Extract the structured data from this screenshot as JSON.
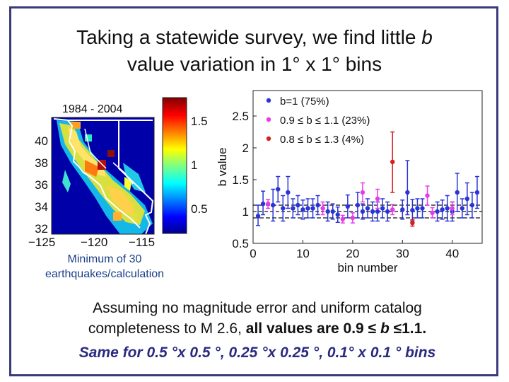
{
  "slide": {
    "title_line1_prefix": "Taking a statewide survey, we find little ",
    "title_line1_b": "b",
    "title_line2": "value variation in  1° x 1° bins",
    "caption_line1": "Assuming no magnitude error and uniform catalog",
    "caption_line2_plain": "completeness to M 2.6, ",
    "caption_line2_bold": "all values are 0.9 ≤ ",
    "caption_line2_b": "b",
    "caption_line2_end": " ≤1.1.",
    "caption_line3": "Same for 0.5 °x 0.5 °, 0.25 °x 0.25 °, 0.1° x 0.1 ° bins"
  },
  "map": {
    "period_label": "1984 - 2004",
    "y_ticks": [
      "40",
      "38",
      "36",
      "34",
      "32"
    ],
    "x_ticks": [
      "−125",
      "−120",
      "−115"
    ],
    "colorbar_ticks": [
      "1.5",
      "1",
      "0.5"
    ],
    "min_label_line1": "Minimum of 30",
    "min_label_line2": "earthquakes/calculation"
  },
  "chart_data": {
    "type": "scatter",
    "title": "",
    "xlabel": "bin number",
    "ylabel": "b value",
    "xlim": [
      0,
      46
    ],
    "ylim": [
      0.5,
      2.9
    ],
    "x_ticks": [
      0,
      10,
      20,
      30,
      40
    ],
    "y_ticks": [
      0.5,
      1,
      1.5,
      2,
      2.5
    ],
    "y_tick_labels": [
      "0.5",
      "1",
      "1.5",
      "2",
      "2.5"
    ],
    "reference_lines": [
      1.1,
      1.0,
      0.9
    ],
    "legend": [
      {
        "label": "b=1 (75%)",
        "color": "#2a35d8"
      },
      {
        "label": "0.9 ≤ b ≤ 1.1 (23%)",
        "color": "#e83ae8"
      },
      {
        "label": "0.8 ≤ b ≤ 1.3 (4%)",
        "color": "#d42020"
      }
    ],
    "series": [
      {
        "name": "b=1 (75%)",
        "color": "#2a35d8",
        "points": [
          {
            "x": 1,
            "y": 0.93,
            "lo": 0.78,
            "hi": 1.1
          },
          {
            "x": 2,
            "y": 1.12,
            "lo": 0.95,
            "hi": 1.32
          },
          {
            "x": 4,
            "y": 1.1,
            "lo": 0.85,
            "hi": 1.35
          },
          {
            "x": 5,
            "y": 1.35,
            "lo": 1.15,
            "hi": 1.55
          },
          {
            "x": 6,
            "y": 1.05,
            "lo": 0.85,
            "hi": 1.25
          },
          {
            "x": 7,
            "y": 1.3,
            "lo": 1.05,
            "hi": 1.55
          },
          {
            "x": 8,
            "y": 1.05,
            "lo": 0.9,
            "hi": 1.2
          },
          {
            "x": 9,
            "y": 1.1,
            "lo": 0.95,
            "hi": 1.25
          },
          {
            "x": 10,
            "y": 1.03,
            "lo": 0.88,
            "hi": 1.18
          },
          {
            "x": 11,
            "y": 1.05,
            "lo": 0.9,
            "hi": 1.2
          },
          {
            "x": 12,
            "y": 1.05,
            "lo": 0.9,
            "hi": 1.2
          },
          {
            "x": 13,
            "y": 1.1,
            "lo": 0.95,
            "hi": 1.25
          },
          {
            "x": 15,
            "y": 1.0,
            "lo": 0.85,
            "hi": 1.15
          },
          {
            "x": 16,
            "y": 1.0,
            "lo": 0.88,
            "hi": 1.12
          },
          {
            "x": 17,
            "y": 0.95,
            "lo": 0.83,
            "hi": 1.07
          },
          {
            "x": 19,
            "y": 1.08,
            "lo": 0.9,
            "hi": 1.26
          },
          {
            "x": 21,
            "y": 1.1,
            "lo": 0.9,
            "hi": 1.3
          },
          {
            "x": 22,
            "y": 1.0,
            "lo": 0.88,
            "hi": 1.12
          },
          {
            "x": 23,
            "y": 1.05,
            "lo": 0.9,
            "hi": 1.2
          },
          {
            "x": 24,
            "y": 1.0,
            "lo": 0.85,
            "hi": 1.15
          },
          {
            "x": 25,
            "y": 1.0,
            "lo": 0.85,
            "hi": 1.15
          },
          {
            "x": 26,
            "y": 1.05,
            "lo": 0.9,
            "hi": 1.2
          },
          {
            "x": 27,
            "y": 1.0,
            "lo": 0.85,
            "hi": 1.15
          },
          {
            "x": 30,
            "y": 1.03,
            "lo": 0.88,
            "hi": 1.18
          },
          {
            "x": 31,
            "y": 1.3,
            "lo": 0.95,
            "hi": 1.8
          },
          {
            "x": 32,
            "y": 1.02,
            "lo": 0.85,
            "hi": 1.19
          },
          {
            "x": 33,
            "y": 1.05,
            "lo": 0.9,
            "hi": 1.2
          },
          {
            "x": 34,
            "y": 1.05,
            "lo": 0.9,
            "hi": 1.2
          },
          {
            "x": 37,
            "y": 1.0,
            "lo": 0.85,
            "hi": 1.15
          },
          {
            "x": 38,
            "y": 1.03,
            "lo": 0.88,
            "hi": 1.18
          },
          {
            "x": 39,
            "y": 1.05,
            "lo": 0.85,
            "hi": 1.25
          },
          {
            "x": 40,
            "y": 1.0,
            "lo": 0.85,
            "hi": 1.15
          },
          {
            "x": 41,
            "y": 1.3,
            "lo": 1.0,
            "hi": 1.6
          },
          {
            "x": 42,
            "y": 1.05,
            "lo": 0.9,
            "hi": 1.2
          },
          {
            "x": 43,
            "y": 1.2,
            "lo": 0.95,
            "hi": 1.45
          },
          {
            "x": 44,
            "y": 1.1,
            "lo": 0.9,
            "hi": 1.3
          },
          {
            "x": 45,
            "y": 1.3,
            "lo": 1.05,
            "hi": 1.55
          }
        ]
      },
      {
        "name": "0.9 ≤ b ≤ 1.1 (23%)",
        "color": "#e83ae8",
        "points": [
          {
            "x": 3,
            "y": 1.12,
            "lo": 1.05,
            "hi": 1.19
          },
          {
            "x": 14,
            "y": 1.05,
            "lo": 0.95,
            "hi": 1.15
          },
          {
            "x": 18,
            "y": 0.88,
            "lo": 0.82,
            "hi": 0.94
          },
          {
            "x": 20,
            "y": 0.9,
            "lo": 0.82,
            "hi": 0.98
          },
          {
            "x": 22,
            "y": 1.3,
            "lo": 1.15,
            "hi": 1.45
          },
          {
            "x": 25,
            "y": 1.2,
            "lo": 1.05,
            "hi": 1.35
          },
          {
            "x": 28,
            "y": 1.03,
            "lo": 0.95,
            "hi": 1.11
          },
          {
            "x": 35,
            "y": 1.25,
            "lo": 1.1,
            "hi": 1.4
          },
          {
            "x": 36,
            "y": 0.98,
            "lo": 0.9,
            "hi": 1.06
          },
          {
            "x": 40,
            "y": 1.05,
            "lo": 0.95,
            "hi": 1.15
          }
        ]
      },
      {
        "name": "0.8 ≤ b ≤ 1.3 (4%)",
        "color": "#d42020",
        "points": [
          {
            "x": 28,
            "y": 1.78,
            "lo": 1.3,
            "hi": 2.25
          },
          {
            "x": 32,
            "y": 0.82,
            "lo": 0.77,
            "hi": 0.87
          }
        ]
      }
    ]
  }
}
